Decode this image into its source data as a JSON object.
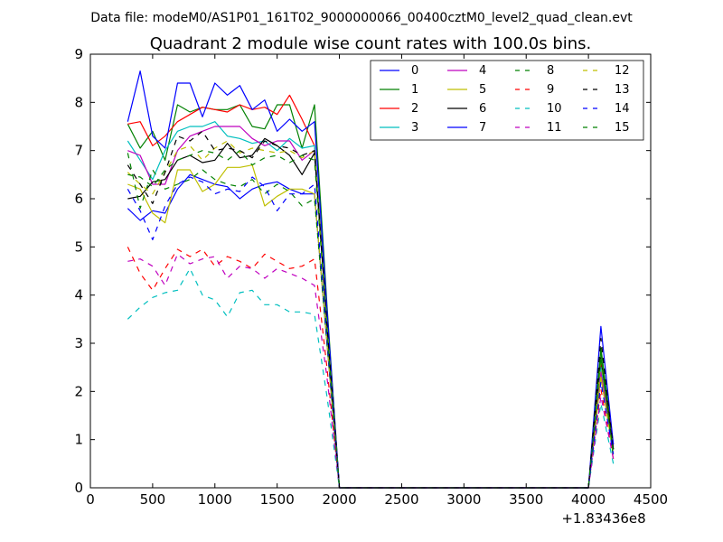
{
  "header": {
    "datafile_label": "Data file: modeM0/AS1P01_161T02_9000000066_00400cztM0_level2_quad_clean.evt"
  },
  "chart_data": {
    "type": "line",
    "title": "Quadrant 2 module wise count rates with 100.0s bins.",
    "xlabel": "",
    "ylabel": "",
    "xlim": [
      0,
      4500
    ],
    "ylim": [
      0,
      9
    ],
    "x_offset_label": "+1.83436e8",
    "xticks": [
      0,
      500,
      1000,
      1500,
      2000,
      2500,
      3000,
      3500,
      4000,
      4500
    ],
    "yticks": [
      0,
      1,
      2,
      3,
      4,
      5,
      6,
      7,
      8,
      9
    ],
    "grid": false,
    "legend": {
      "placement": "top-right",
      "columns": 4
    },
    "x": [
      300,
      400,
      500,
      600,
      700,
      800,
      900,
      1000,
      1100,
      1200,
      1300,
      1400,
      1500,
      1600,
      1700,
      1800,
      1900,
      2000,
      2100,
      2200,
      2300,
      2400,
      2500,
      2600,
      2700,
      2800,
      2900,
      3000,
      3100,
      3200,
      3300,
      3400,
      3500,
      3600,
      3700,
      3800,
      3900,
      4000,
      4100,
      4200
    ],
    "series": [
      {
        "name": "0",
        "color": "#0000ff",
        "dash": "solid",
        "values": [
          5.8,
          5.55,
          5.75,
          5.7,
          6.2,
          6.5,
          6.4,
          6.3,
          6.25,
          6.0,
          6.2,
          6.3,
          6.35,
          6.2,
          6.1,
          6.1,
          3.0,
          0,
          0,
          0,
          0,
          0,
          0,
          0,
          0,
          0,
          0,
          0,
          0,
          0,
          0,
          0,
          0,
          0,
          0,
          0,
          0,
          0,
          2.3,
          0.8
        ]
      },
      {
        "name": "1",
        "color": "#008000",
        "dash": "solid",
        "values": [
          7.55,
          7.05,
          7.4,
          6.8,
          7.95,
          7.8,
          7.9,
          7.85,
          7.85,
          7.95,
          7.5,
          7.45,
          7.95,
          7.95,
          7.05,
          7.95,
          3.8,
          0,
          0,
          0,
          0,
          0,
          0,
          0,
          0,
          0,
          0,
          0,
          0,
          0,
          0,
          0,
          0,
          0,
          0,
          0,
          0,
          0,
          2.9,
          0.9
        ]
      },
      {
        "name": "2",
        "color": "#ff0000",
        "dash": "solid",
        "values": [
          7.55,
          7.6,
          7.1,
          7.3,
          7.6,
          7.75,
          7.9,
          7.85,
          7.8,
          7.95,
          7.85,
          7.9,
          7.75,
          8.15,
          7.65,
          7.1,
          3.6,
          0,
          0,
          0,
          0,
          0,
          0,
          0,
          0,
          0,
          0,
          0,
          0,
          0,
          0,
          0,
          0,
          0,
          0,
          0,
          0,
          0,
          2.6,
          0.9
        ]
      },
      {
        "name": "3",
        "color": "#00bfbf",
        "dash": "solid",
        "values": [
          7.2,
          6.8,
          6.4,
          7.0,
          7.4,
          7.5,
          7.5,
          7.6,
          7.3,
          7.25,
          7.15,
          7.2,
          7.0,
          7.25,
          7.05,
          7.1,
          3.5,
          0,
          0,
          0,
          0,
          0,
          0,
          0,
          0,
          0,
          0,
          0,
          0,
          0,
          0,
          0,
          0,
          0,
          0,
          0,
          0,
          0,
          2.5,
          0.8
        ]
      },
      {
        "name": "4",
        "color": "#bf00bf",
        "dash": "solid",
        "values": [
          7.0,
          6.9,
          6.3,
          6.3,
          7.0,
          7.3,
          7.4,
          7.5,
          7.5,
          7.5,
          7.25,
          7.1,
          7.2,
          7.2,
          6.8,
          7.0,
          3.4,
          0,
          0,
          0,
          0,
          0,
          0,
          0,
          0,
          0,
          0,
          0,
          0,
          0,
          0,
          0,
          0,
          0,
          0,
          0,
          0,
          0,
          2.4,
          0.8
        ]
      },
      {
        "name": "5",
        "color": "#bfbf00",
        "dash": "solid",
        "values": [
          6.3,
          6.2,
          5.7,
          5.5,
          6.6,
          6.6,
          6.15,
          6.3,
          6.65,
          6.65,
          6.7,
          5.85,
          6.05,
          6.2,
          6.2,
          6.1,
          3.0,
          0,
          0,
          0,
          0,
          0,
          0,
          0,
          0,
          0,
          0,
          0,
          0,
          0,
          0,
          0,
          0,
          0,
          0,
          0,
          0,
          0,
          2.3,
          0.7
        ]
      },
      {
        "name": "6",
        "color": "#000000",
        "dash": "solid",
        "values": [
          6.0,
          6.05,
          6.35,
          6.4,
          6.8,
          6.9,
          6.75,
          6.8,
          7.15,
          6.85,
          6.9,
          7.25,
          7.1,
          6.9,
          6.5,
          6.95,
          3.4,
          0,
          0,
          0,
          0,
          0,
          0,
          0,
          0,
          0,
          0,
          0,
          0,
          0,
          0,
          0,
          0,
          0,
          0,
          0,
          0,
          0,
          2.7,
          0.8
        ]
      },
      {
        "name": "7",
        "color": "#0000ff",
        "dash": "solid",
        "values": [
          7.6,
          8.65,
          7.3,
          7.05,
          8.4,
          8.4,
          7.7,
          8.4,
          8.15,
          8.35,
          7.85,
          8.05,
          7.4,
          7.65,
          7.4,
          7.6,
          3.7,
          0,
          0,
          0,
          0,
          0,
          0,
          0,
          0,
          0,
          0,
          0,
          0,
          0,
          0,
          0,
          0,
          0,
          0,
          0,
          0,
          0,
          3.35,
          0.9
        ]
      },
      {
        "name": "8",
        "color": "#008000",
        "dash": "dashed",
        "values": [
          6.95,
          5.8,
          6.6,
          6.2,
          6.3,
          6.4,
          6.6,
          6.4,
          6.3,
          6.25,
          6.4,
          6.1,
          6.3,
          6.15,
          5.85,
          6.0,
          3.0,
          0,
          0,
          0,
          0,
          0,
          0,
          0,
          0,
          0,
          0,
          0,
          0,
          0,
          0,
          0,
          0,
          0,
          0,
          0,
          0,
          0,
          2.8,
          0.6
        ]
      },
      {
        "name": "9",
        "color": "#ff0000",
        "dash": "dashed",
        "values": [
          5.0,
          4.45,
          4.1,
          4.55,
          4.95,
          4.8,
          4.95,
          4.6,
          4.8,
          4.7,
          4.55,
          4.85,
          4.7,
          4.55,
          4.6,
          4.75,
          2.5,
          0,
          0,
          0,
          0,
          0,
          0,
          0,
          0,
          0,
          0,
          0,
          0,
          0,
          0,
          0,
          0,
          0,
          0,
          0,
          0,
          0,
          2.05,
          0.6
        ]
      },
      {
        "name": "10",
        "color": "#00bfbf",
        "dash": "dashed",
        "values": [
          3.5,
          3.75,
          3.95,
          4.05,
          4.1,
          4.55,
          4.0,
          3.9,
          3.55,
          4.05,
          4.1,
          3.8,
          3.8,
          3.65,
          3.65,
          3.6,
          1.9,
          0,
          0,
          0,
          0,
          0,
          0,
          0,
          0,
          0,
          0,
          0,
          0,
          0,
          0,
          0,
          0,
          0,
          0,
          0,
          0,
          0,
          1.75,
          0.5
        ]
      },
      {
        "name": "11",
        "color": "#bf00bf",
        "dash": "dashed",
        "values": [
          4.7,
          4.75,
          4.6,
          4.2,
          4.85,
          4.65,
          4.75,
          4.8,
          4.35,
          4.6,
          4.55,
          4.35,
          4.55,
          4.45,
          4.35,
          4.2,
          2.3,
          0,
          0,
          0,
          0,
          0,
          0,
          0,
          0,
          0,
          0,
          0,
          0,
          0,
          0,
          0,
          0,
          0,
          0,
          0,
          0,
          0,
          1.9,
          0.6
        ]
      },
      {
        "name": "12",
        "color": "#bfbf00",
        "dash": "dashed",
        "values": [
          6.55,
          6.3,
          6.1,
          6.55,
          7.0,
          7.1,
          6.8,
          7.05,
          7.2,
          6.95,
          7.05,
          7.0,
          6.95,
          7.0,
          6.85,
          7.0,
          3.4,
          0,
          0,
          0,
          0,
          0,
          0,
          0,
          0,
          0,
          0,
          0,
          0,
          0,
          0,
          0,
          0,
          0,
          0,
          0,
          0,
          0,
          2.6,
          0.8
        ]
      },
      {
        "name": "13",
        "color": "#000000",
        "dash": "dashed",
        "values": [
          6.7,
          6.3,
          5.9,
          6.55,
          7.3,
          7.2,
          7.4,
          7.0,
          7.05,
          7.0,
          6.85,
          7.2,
          7.1,
          7.05,
          6.9,
          7.0,
          3.4,
          0,
          0,
          0,
          0,
          0,
          0,
          0,
          0,
          0,
          0,
          0,
          0,
          0,
          0,
          0,
          0,
          0,
          0,
          0,
          0,
          0,
          3.1,
          0.8
        ]
      },
      {
        "name": "14",
        "color": "#0000ff",
        "dash": "dashed",
        "values": [
          6.2,
          5.75,
          5.15,
          5.85,
          6.3,
          6.45,
          6.35,
          6.1,
          6.2,
          6.15,
          6.45,
          6.25,
          5.75,
          6.1,
          6.1,
          6.3,
          3.1,
          0,
          0,
          0,
          0,
          0,
          0,
          0,
          0,
          0,
          0,
          0,
          0,
          0,
          0,
          0,
          0,
          0,
          0,
          0,
          0,
          0,
          2.2,
          0.7
        ]
      },
      {
        "name": "15",
        "color": "#008000",
        "dash": "dashed",
        "values": [
          6.5,
          6.45,
          6.25,
          6.6,
          6.8,
          6.9,
          7.0,
          6.95,
          6.8,
          7.0,
          6.7,
          6.85,
          6.9,
          6.75,
          6.9,
          6.8,
          3.3,
          0,
          0,
          0,
          0,
          0,
          0,
          0,
          0,
          0,
          0,
          0,
          0,
          0,
          0,
          0,
          0,
          0,
          0,
          0,
          0,
          0,
          2.7,
          0.7
        ]
      }
    ]
  }
}
